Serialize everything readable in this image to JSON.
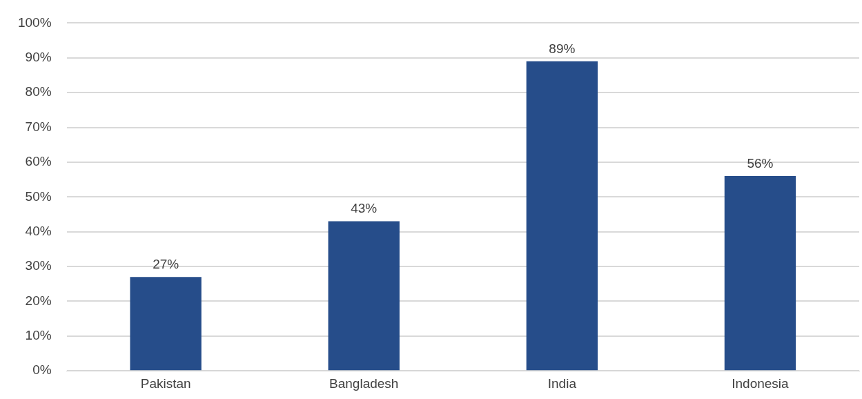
{
  "chart_data": {
    "type": "bar",
    "categories": [
      "Pakistan",
      "Bangladesh",
      "India",
      "Indonesia"
    ],
    "values": [
      27,
      43,
      89,
      56
    ],
    "value_labels": [
      "27%",
      "43%",
      "89%",
      "56%"
    ],
    "color": "#264d8a",
    "ylim": [
      0,
      100
    ],
    "yticks": [
      {
        "value": 0,
        "label": "0%"
      },
      {
        "value": 10,
        "label": "10%"
      },
      {
        "value": 20,
        "label": "20%"
      },
      {
        "value": 30,
        "label": "30%"
      },
      {
        "value": 40,
        "label": "40%"
      },
      {
        "value": 50,
        "label": "50%"
      },
      {
        "value": 60,
        "label": "60%"
      },
      {
        "value": 70,
        "label": "70%"
      },
      {
        "value": 80,
        "label": "80%"
      },
      {
        "value": 90,
        "label": "90%"
      },
      {
        "value": 100,
        "label": "100%"
      }
    ],
    "grid": "y"
  }
}
